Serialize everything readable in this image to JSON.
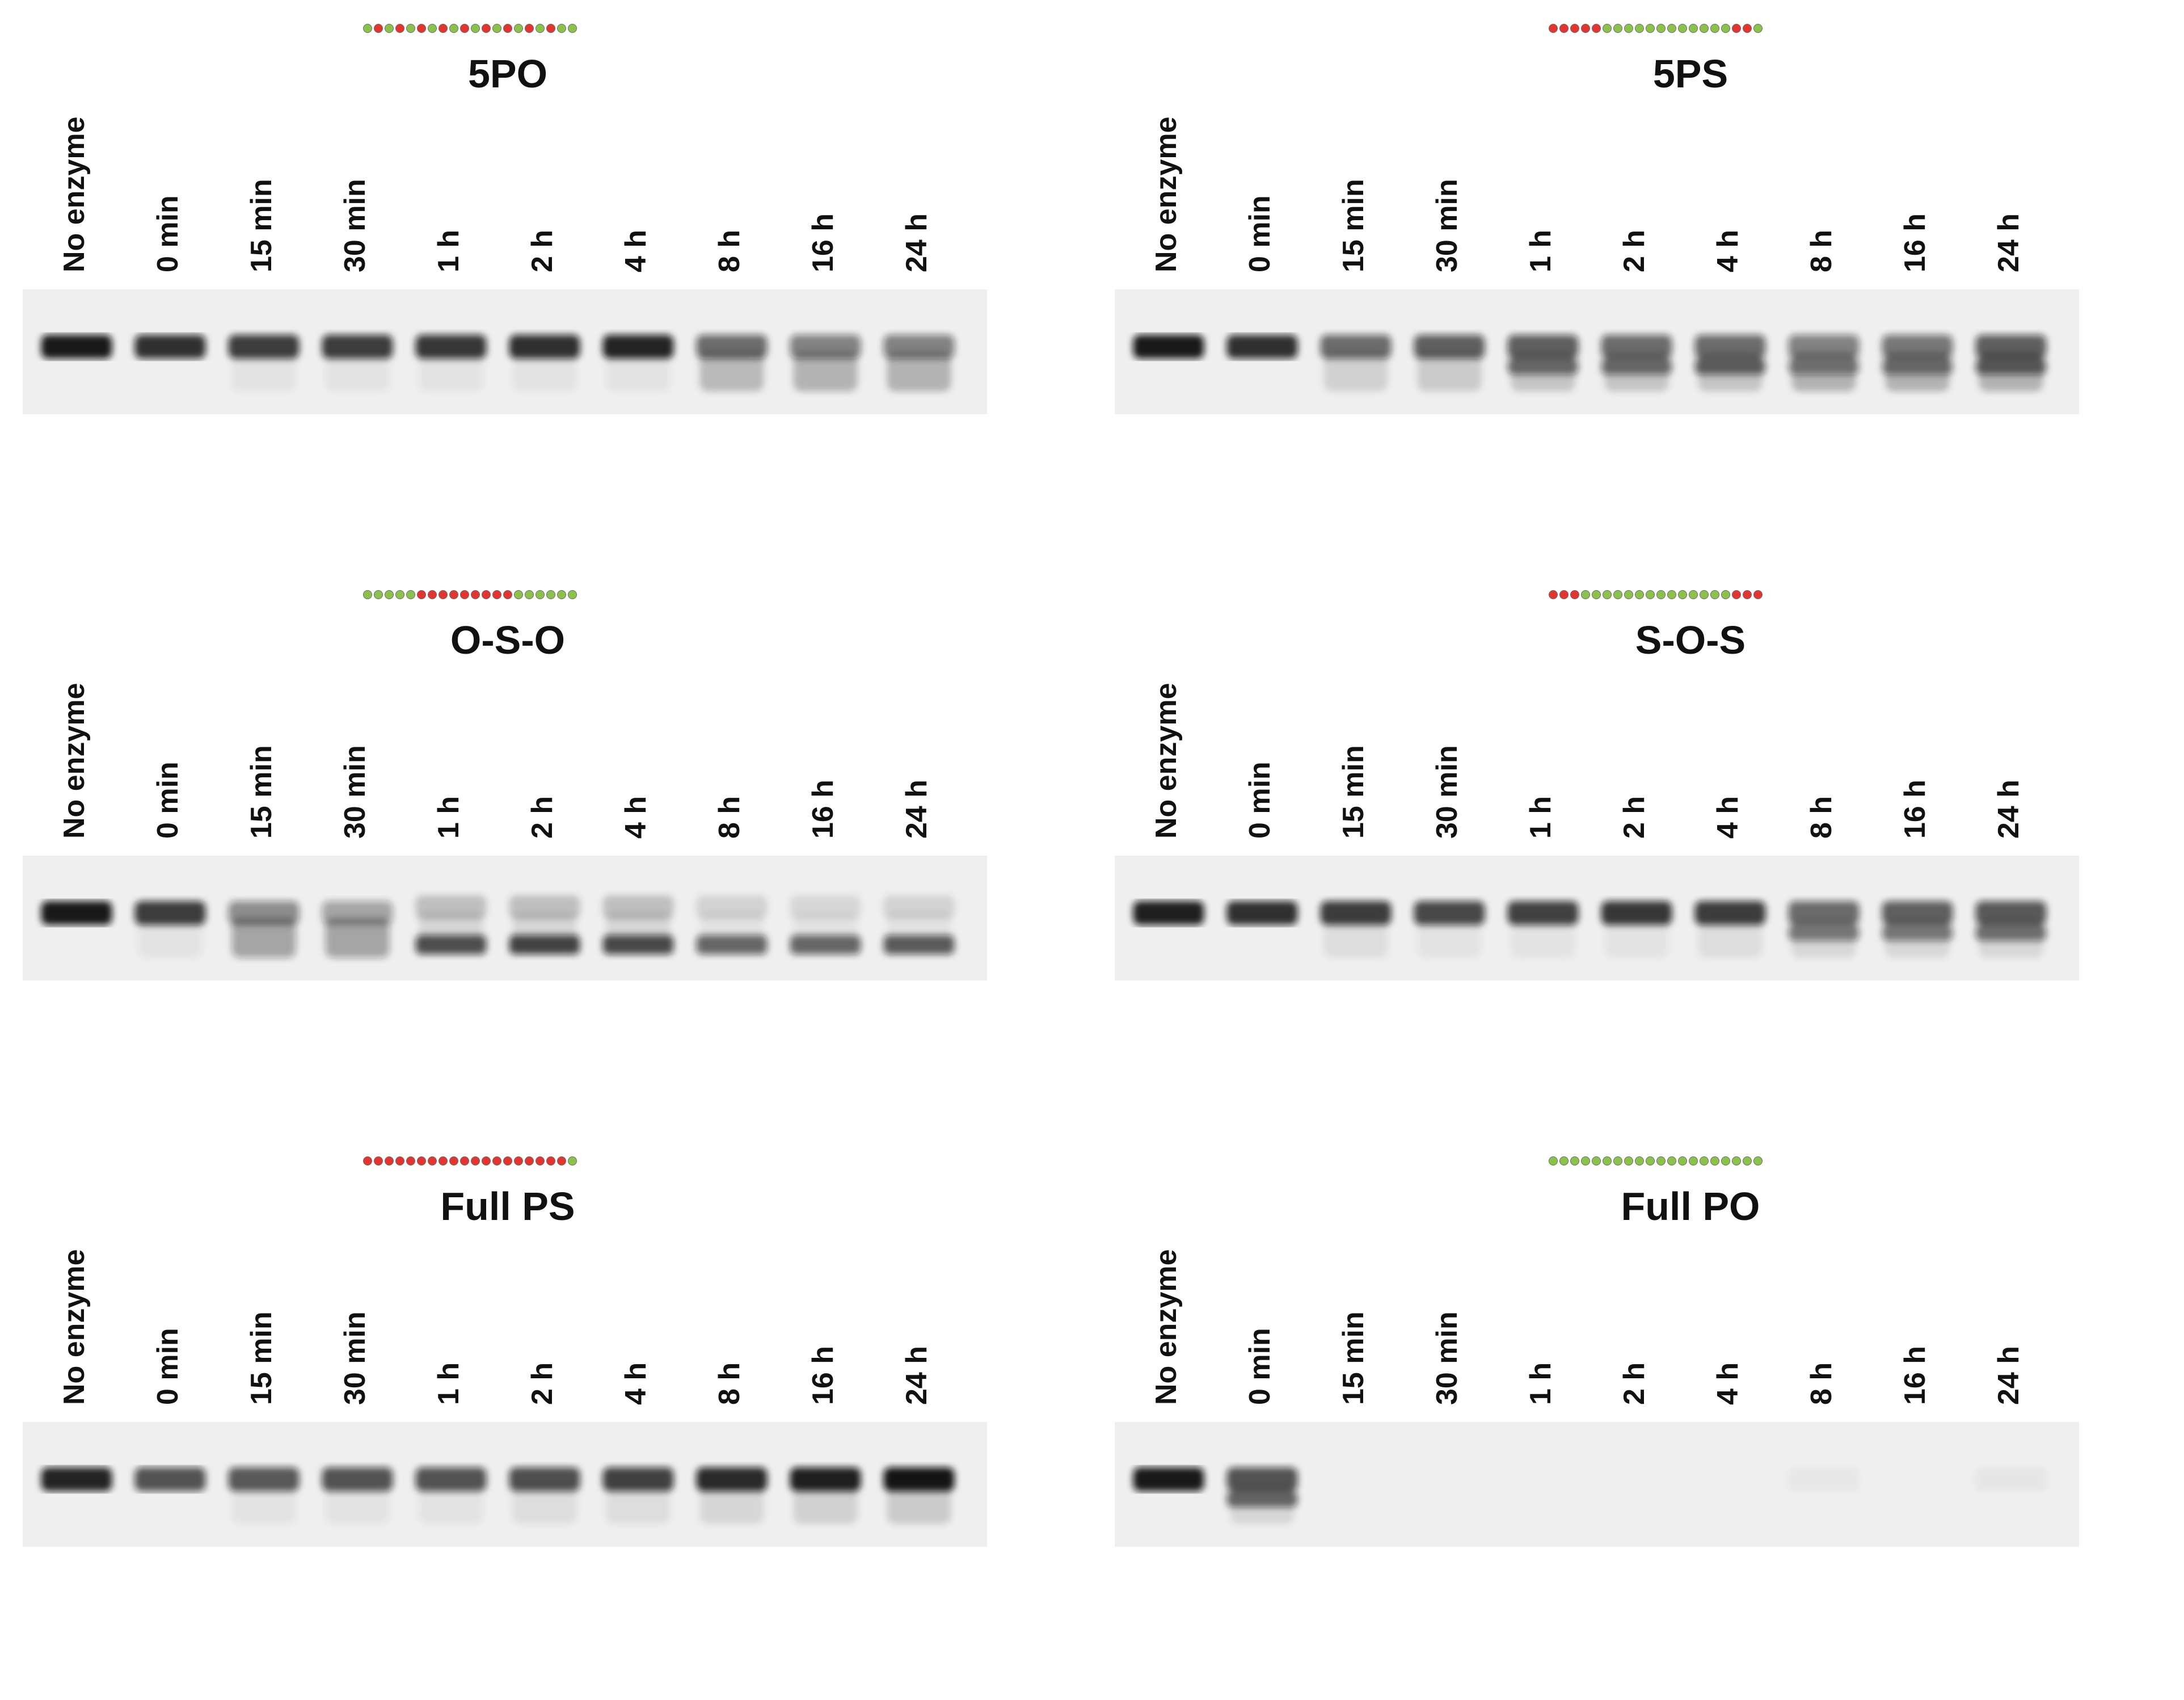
{
  "lanes": [
    "No enzyme",
    "0 min",
    "15 min",
    "30 min",
    "1 h",
    "2 h",
    "4 h",
    "8 h",
    "16 h",
    "24 h"
  ],
  "colors": {
    "ps_bead": "#e3342f",
    "po_bead": "#8bc34a",
    "band": "#111111",
    "gel_bg": "#efefef"
  },
  "panels": [
    {
      "title": "5PO",
      "modification": [
        "po",
        "ps",
        "po",
        "ps",
        "po",
        "ps",
        "po",
        "ps",
        "po",
        "ps",
        "po",
        "ps",
        "po",
        "ps",
        "po",
        "ps",
        "po",
        "ps",
        "po",
        "po"
      ],
      "bands": [
        [
          {
            "i": 0.95,
            "w": 1,
            "smear": 0
          }
        ],
        [
          {
            "i": 0.85,
            "w": 1,
            "smear": 0
          }
        ],
        [
          {
            "i": 0.8,
            "w": 1,
            "smear": 0.1
          }
        ],
        [
          {
            "i": 0.8,
            "w": 1,
            "smear": 0.1
          }
        ],
        [
          {
            "i": 0.82,
            "w": 1,
            "smear": 0.1
          }
        ],
        [
          {
            "i": 0.85,
            "w": 1,
            "smear": 0.1
          }
        ],
        [
          {
            "i": 0.9,
            "w": 1,
            "smear": 0.1
          }
        ],
        [
          {
            "i": 0.6,
            "w": 1,
            "smear": 0.45
          }
        ],
        [
          {
            "i": 0.5,
            "w": 1,
            "smear": 0.5
          }
        ],
        [
          {
            "i": 0.5,
            "w": 1,
            "smear": 0.5
          }
        ]
      ]
    },
    {
      "title": "5PS",
      "modification": [
        "ps",
        "ps",
        "ps",
        "ps",
        "ps",
        "po",
        "po",
        "po",
        "po",
        "po",
        "po",
        "po",
        "po",
        "po",
        "po",
        "po",
        "po",
        "ps",
        "ps",
        "po"
      ],
      "bands": [
        [
          {
            "i": 0.95,
            "w": 1,
            "smear": 0
          }
        ],
        [
          {
            "i": 0.85,
            "w": 1,
            "smear": 0
          }
        ],
        [
          {
            "i": 0.6,
            "w": 1,
            "smear": 0.25
          }
        ],
        [
          {
            "i": 0.65,
            "w": 1,
            "smear": 0.3
          }
        ],
        [
          {
            "i": 0.65,
            "w": 1,
            "smear": 0.35,
            "second": 0.55
          }
        ],
        [
          {
            "i": 0.6,
            "w": 1,
            "smear": 0.35,
            "second": 0.55
          }
        ],
        [
          {
            "i": 0.6,
            "w": 1,
            "smear": 0.35,
            "second": 0.6
          }
        ],
        [
          {
            "i": 0.5,
            "w": 1,
            "smear": 0.5,
            "second": 0.45
          }
        ],
        [
          {
            "i": 0.55,
            "w": 1,
            "smear": 0.5,
            "second": 0.5
          }
        ],
        [
          {
            "i": 0.65,
            "w": 1,
            "smear": 0.5,
            "second": 0.6
          }
        ]
      ]
    },
    {
      "title": "O-S-O",
      "modification": [
        "po",
        "po",
        "po",
        "po",
        "po",
        "ps",
        "ps",
        "ps",
        "ps",
        "ps",
        "ps",
        "ps",
        "ps",
        "ps",
        "po",
        "po",
        "po",
        "po",
        "po",
        "po"
      ],
      "bands": [
        [
          {
            "i": 0.95,
            "w": 1,
            "smear": 0
          }
        ],
        [
          {
            "i": 0.8,
            "w": 1,
            "smear": 0.1
          }
        ],
        [
          {
            "i": 0.45,
            "w": 1,
            "smear": 0.7
          }
        ],
        [
          {
            "i": 0.35,
            "w": 1,
            "smear": 0.7
          }
        ],
        [
          {
            "i": 0.2,
            "w": 1,
            "smear": 0.2,
            "low": 0.7
          }
        ],
        [
          {
            "i": 0.2,
            "w": 1,
            "smear": 0.2,
            "low": 0.75
          }
        ],
        [
          {
            "i": 0.2,
            "w": 1,
            "smear": 0.2,
            "low": 0.72
          }
        ],
        [
          {
            "i": 0.12,
            "w": 1,
            "smear": 0.1,
            "low": 0.6
          }
        ],
        [
          {
            "i": 0.1,
            "w": 1,
            "smear": 0.1,
            "low": 0.6
          }
        ],
        [
          {
            "i": 0.12,
            "w": 1,
            "smear": 0.1,
            "low": 0.65
          }
        ]
      ]
    },
    {
      "title": "S-O-S",
      "modification": [
        "ps",
        "ps",
        "ps",
        "po",
        "po",
        "po",
        "po",
        "po",
        "po",
        "po",
        "po",
        "po",
        "po",
        "po",
        "po",
        "po",
        "po",
        "ps",
        "ps",
        "ps"
      ],
      "bands": [
        [
          {
            "i": 0.92,
            "w": 1,
            "smear": 0
          }
        ],
        [
          {
            "i": 0.85,
            "w": 1,
            "smear": 0
          }
        ],
        [
          {
            "i": 0.8,
            "w": 1,
            "smear": 0.15
          }
        ],
        [
          {
            "i": 0.75,
            "w": 1,
            "smear": 0.1
          }
        ],
        [
          {
            "i": 0.78,
            "w": 1,
            "smear": 0.1
          }
        ],
        [
          {
            "i": 0.82,
            "w": 1,
            "smear": 0.1
          }
        ],
        [
          {
            "i": 0.8,
            "w": 1,
            "smear": 0.15
          }
        ],
        [
          {
            "i": 0.6,
            "w": 1,
            "smear": 0.2,
            "second": 0.5
          }
        ],
        [
          {
            "i": 0.65,
            "w": 1,
            "smear": 0.2,
            "second": 0.5
          }
        ],
        [
          {
            "i": 0.68,
            "w": 1,
            "smear": 0.2,
            "second": 0.55
          }
        ]
      ]
    },
    {
      "title": "Full PS",
      "modification": [
        "ps",
        "ps",
        "ps",
        "ps",
        "ps",
        "ps",
        "ps",
        "ps",
        "ps",
        "ps",
        "ps",
        "ps",
        "ps",
        "ps",
        "ps",
        "ps",
        "ps",
        "ps",
        "ps",
        "po"
      ],
      "bands": [
        [
          {
            "i": 0.9,
            "w": 1,
            "smear": 0
          }
        ],
        [
          {
            "i": 0.7,
            "w": 1,
            "smear": 0
          }
        ],
        [
          {
            "i": 0.68,
            "w": 1,
            "smear": 0.1
          }
        ],
        [
          {
            "i": 0.7,
            "w": 1,
            "smear": 0.1
          }
        ],
        [
          {
            "i": 0.7,
            "w": 1,
            "smear": 0.1
          }
        ],
        [
          {
            "i": 0.72,
            "w": 1,
            "smear": 0.15
          }
        ],
        [
          {
            "i": 0.78,
            "w": 1,
            "smear": 0.15
          }
        ],
        [
          {
            "i": 0.88,
            "w": 1,
            "smear": 0.2
          }
        ],
        [
          {
            "i": 0.92,
            "w": 1,
            "smear": 0.25
          }
        ],
        [
          {
            "i": 0.97,
            "w": 1,
            "smear": 0.3
          }
        ]
      ]
    },
    {
      "title": "Full PO",
      "modification": [
        "po",
        "po",
        "po",
        "po",
        "po",
        "po",
        "po",
        "po",
        "po",
        "po",
        "po",
        "po",
        "po",
        "po",
        "po",
        "po",
        "po",
        "po",
        "po",
        "po"
      ],
      "bands": [
        [
          {
            "i": 0.95,
            "w": 1,
            "smear": 0
          }
        ],
        [
          {
            "i": 0.7,
            "w": 1,
            "smear": 0.2,
            "second": 0.6
          }
        ],
        [
          {
            "i": 0,
            "w": 1,
            "smear": 0
          }
        ],
        [
          {
            "i": 0,
            "w": 1,
            "smear": 0
          }
        ],
        [
          {
            "i": 0,
            "w": 1,
            "smear": 0
          }
        ],
        [
          {
            "i": 0,
            "w": 1,
            "smear": 0
          }
        ],
        [
          {
            "i": 0,
            "w": 1,
            "smear": 0
          }
        ],
        [
          {
            "i": 0.03,
            "w": 1,
            "smear": 0
          }
        ],
        [
          {
            "i": 0,
            "w": 1,
            "smear": 0
          }
        ],
        [
          {
            "i": 0.04,
            "w": 1,
            "smear": 0
          }
        ]
      ]
    }
  ]
}
